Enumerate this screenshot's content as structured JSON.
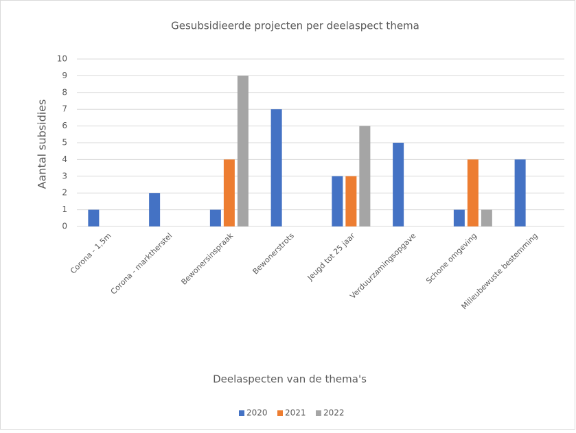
{
  "chart_data": {
    "type": "bar",
    "title": "Gesubsidieerde projecten per deelaspect thema",
    "x_label": "Deelaspecten van de thema's",
    "y_label": "Aantal subsidies",
    "categories": [
      "Corona - 1,5m",
      "Corona - marktherstel",
      "Bewonersinspraak",
      "Bewonerstrots",
      "Jeugd tot 25 jaar",
      "Verduurzamingsopgave",
      "Schone omgeving",
      "Milieubewuste bestemming"
    ],
    "series": [
      {
        "name": "2020",
        "color": "#4472c4",
        "values": [
          1,
          2,
          1,
          7,
          3,
          5,
          1,
          4
        ]
      },
      {
        "name": "2021",
        "color": "#ed7d31",
        "values": [
          0,
          0,
          4,
          0,
          3,
          0,
          4,
          0
        ]
      },
      {
        "name": "2022",
        "color": "#a5a5a5",
        "values": [
          0,
          0,
          9,
          0,
          6,
          0,
          1,
          0
        ]
      }
    ],
    "ylim": [
      0,
      10
    ],
    "yticks": [
      0,
      1,
      2,
      3,
      4,
      5,
      6,
      7,
      8,
      9,
      10
    ],
    "grid": true,
    "legend": "bottom"
  }
}
